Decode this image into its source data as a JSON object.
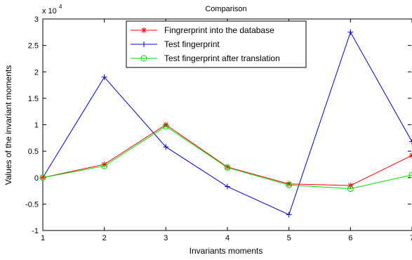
{
  "chart_data": {
    "type": "line",
    "title": "Comparison",
    "xlabel": "Invariants moments",
    "ylabel": "Values of the invariant moments",
    "y_multiplier_label": "x 10",
    "y_multiplier_exponent": "4",
    "x_ticks": [
      "1",
      "2",
      "3",
      "4",
      "5",
      "6",
      "7"
    ],
    "y_ticks": [
      "-1",
      "-0.5",
      "0",
      "0.5",
      "1",
      "1.5",
      "2",
      "2.5",
      "3"
    ],
    "xlim": [
      1,
      7
    ],
    "ylim": [
      -1,
      3
    ],
    "grid": false,
    "legend_position": "top-center",
    "x": [
      1,
      2,
      3,
      4,
      5,
      6,
      7
    ],
    "series": [
      {
        "name": "Fingrerprint into the database",
        "color": "#ff0000",
        "marker": "asterisk",
        "values": [
          0.0,
          0.25,
          1.0,
          0.2,
          -0.12,
          -0.15,
          0.42
        ]
      },
      {
        "name": "Test fingerprint",
        "color": "#0000cc",
        "marker": "plus",
        "values": [
          0.0,
          1.9,
          0.58,
          -0.17,
          -0.7,
          2.75,
          0.68
        ]
      },
      {
        "name": "Test fingerprint after translation",
        "color": "#00dd00",
        "marker": "circle",
        "values": [
          0.0,
          0.22,
          0.97,
          0.19,
          -0.14,
          -0.21,
          0.05
        ]
      }
    ]
  }
}
